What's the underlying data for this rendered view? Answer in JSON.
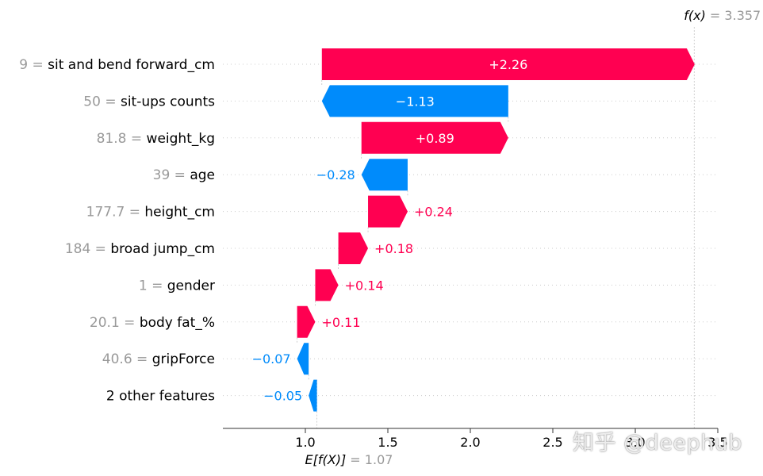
{
  "chart_data": {
    "type": "waterfall",
    "base_value": 1.07,
    "output_value": 3.357,
    "base_label": "E[f(X)] = 1.07",
    "output_label": "f(x) = 3.357",
    "xlim": [
      0.5,
      3.5
    ],
    "xticks": [
      1.0,
      1.5,
      2.0,
      2.5,
      3.0,
      3.5
    ],
    "xtick_labels": [
      "1.0",
      "1.5",
      "2.0",
      "2.5",
      "3.0",
      "3.5"
    ],
    "features": [
      {
        "value": "9",
        "name": "sit and bend forward_cm",
        "shap": 2.26,
        "label": "+2.26"
      },
      {
        "value": "50",
        "name": "sit-ups counts",
        "shap": -1.13,
        "label": "−1.13"
      },
      {
        "value": "81.8",
        "name": "weight_kg",
        "shap": 0.89,
        "label": "+0.89"
      },
      {
        "value": "39",
        "name": "age",
        "shap": -0.28,
        "label": "−0.28"
      },
      {
        "value": "177.7",
        "name": "height_cm",
        "shap": 0.24,
        "label": "+0.24"
      },
      {
        "value": "184",
        "name": "broad jump_cm",
        "shap": 0.18,
        "label": "+0.18"
      },
      {
        "value": "1",
        "name": "gender",
        "shap": 0.14,
        "label": "+0.14"
      },
      {
        "value": "20.1",
        "name": "body fat_%",
        "shap": 0.11,
        "label": "+0.11"
      },
      {
        "value": "40.6",
        "name": "gripForce",
        "shap": -0.07,
        "label": "−0.07"
      },
      {
        "value": "",
        "name": "2 other features",
        "shap": -0.05,
        "label": "−0.05"
      }
    ],
    "colors": {
      "positive": "#ff0051",
      "negative": "#008bfb",
      "value_text": "#999999",
      "name_text": "#000000"
    }
  },
  "watermark": "知乎 @deephub"
}
